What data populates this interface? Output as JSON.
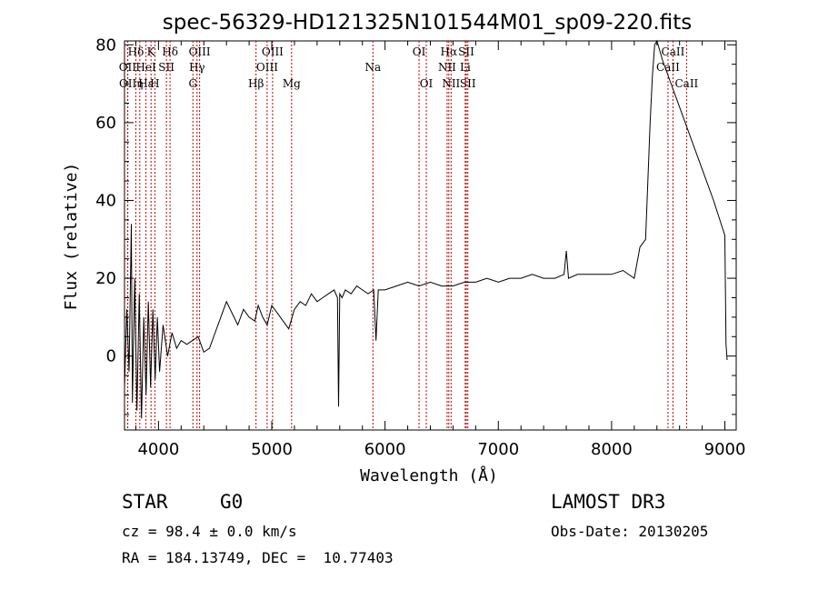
{
  "chart_data": {
    "type": "line",
    "title": "spec-56329-HD121325N101544M01_sp09-220.fits",
    "xlabel": "Wavelength (Å)",
    "ylabel": "Flux (relative)",
    "xlim": [
      3700,
      9100
    ],
    "ylim": [
      -19,
      81
    ],
    "xticks": [
      4000,
      5000,
      6000,
      7000,
      8000,
      9000
    ],
    "yticks": [
      0,
      20,
      40,
      60,
      80
    ],
    "series": [
      {
        "name": "spectrum",
        "x": [
          3700,
          3720,
          3740,
          3760,
          3770,
          3790,
          3810,
          3830,
          3850,
          3870,
          3890,
          3910,
          3930,
          3950,
          3970,
          3990,
          4010,
          4040,
          4080,
          4120,
          4160,
          4200,
          4250,
          4300,
          4350,
          4400,
          4450,
          4500,
          4550,
          4600,
          4650,
          4700,
          4750,
          4800,
          4850,
          4880,
          4920,
          4960,
          5000,
          5050,
          5100,
          5150,
          5200,
          5250,
          5300,
          5350,
          5400,
          5450,
          5500,
          5550,
          5580,
          5590,
          5600,
          5620,
          5650,
          5700,
          5750,
          5800,
          5850,
          5900,
          5920,
          5940,
          6000,
          6100,
          6200,
          6300,
          6400,
          6500,
          6600,
          6700,
          6800,
          6900,
          7000,
          7100,
          7200,
          7300,
          7400,
          7500,
          7580,
          7600,
          7620,
          7700,
          7800,
          7900,
          8000,
          8100,
          8200,
          8250,
          8300,
          8320,
          8340,
          8360,
          8380,
          8400,
          8420,
          8450,
          8500,
          8600,
          8700,
          8800,
          8900,
          9000,
          9010,
          9020
        ],
        "values": [
          -8,
          12,
          -4,
          34,
          -12,
          20,
          -14,
          16,
          -16,
          10,
          -10,
          14,
          -8,
          12,
          -6,
          10,
          -4,
          8,
          0,
          6,
          2,
          4,
          3,
          4,
          5,
          1,
          2,
          6,
          10,
          14,
          11,
          8,
          12,
          10,
          9,
          13,
          10,
          8,
          13,
          11,
          9,
          7,
          12,
          14,
          13,
          16,
          14,
          15,
          16,
          17,
          15,
          -13,
          16,
          15,
          17,
          16,
          18,
          17,
          16,
          17,
          4,
          17,
          17,
          18,
          19,
          18,
          19,
          18,
          18,
          19,
          19,
          20,
          19,
          20,
          20,
          21,
          20,
          20,
          21,
          27,
          20,
          21,
          21,
          21,
          21,
          22,
          20,
          28,
          30,
          45,
          60,
          72,
          80,
          81,
          79,
          76,
          72,
          64,
          56,
          48,
          40,
          31,
          3,
          -1
        ]
      }
    ],
    "emission_lines": [
      {
        "label": "Hδ",
        "x": 3800,
        "row": 0
      },
      {
        "label": "K",
        "x": 3934,
        "row": 0
      },
      {
        "label": "Hδ",
        "x": 4102,
        "row": 0
      },
      {
        "label": "OIII",
        "x": 4363,
        "row": 0
      },
      {
        "label": "OIII",
        "x": 5007,
        "row": 0
      },
      {
        "label": "OI",
        "x": 6300,
        "row": 0
      },
      {
        "label": "Hα",
        "x": 6563,
        "row": 0
      },
      {
        "label": "SII",
        "x": 6717,
        "row": 0
      },
      {
        "label": "CaII",
        "x": 8542,
        "row": 0
      },
      {
        "label": "OII",
        "x": 3727,
        "row": 1
      },
      {
        "label": "HeI",
        "x": 3889,
        "row": 1
      },
      {
        "label": "SII",
        "x": 4070,
        "row": 1
      },
      {
        "label": "Hγ",
        "x": 4340,
        "row": 1
      },
      {
        "label": "OIII",
        "x": 4959,
        "row": 1
      },
      {
        "label": "Na",
        "x": 5893,
        "row": 1
      },
      {
        "label": "NII",
        "x": 6548,
        "row": 1
      },
      {
        "label": "Li",
        "x": 6708,
        "row": 1
      },
      {
        "label": "CaII",
        "x": 8498,
        "row": 1
      },
      {
        "label": "OII",
        "x": 3729,
        "row": 2
      },
      {
        "label": "Hε",
        "x": 3889,
        "row": 2
      },
      {
        "label": "η",
        "x": 3835,
        "row": 2
      },
      {
        "label": "H",
        "x": 3968,
        "row": 2
      },
      {
        "label": "G",
        "x": 4304,
        "row": 2
      },
      {
        "label": "Hβ",
        "x": 4861,
        "row": 2
      },
      {
        "label": "Mg",
        "x": 5175,
        "row": 2
      },
      {
        "label": "OI",
        "x": 6364,
        "row": 2
      },
      {
        "label": "NII",
        "x": 6583,
        "row": 2
      },
      {
        "label": "SII",
        "x": 6731,
        "row": 2
      },
      {
        "label": "CaII",
        "x": 8662,
        "row": 2
      }
    ]
  },
  "info": {
    "object_class": "STAR",
    "subclass": "G0",
    "survey": "LAMOST DR3",
    "cz": "cz = 98.4 ± 0.0 km/s",
    "obs_date": "Obs-Date: 20130205",
    "coords": "RA = 184.13749, DEC =  10.77403"
  }
}
